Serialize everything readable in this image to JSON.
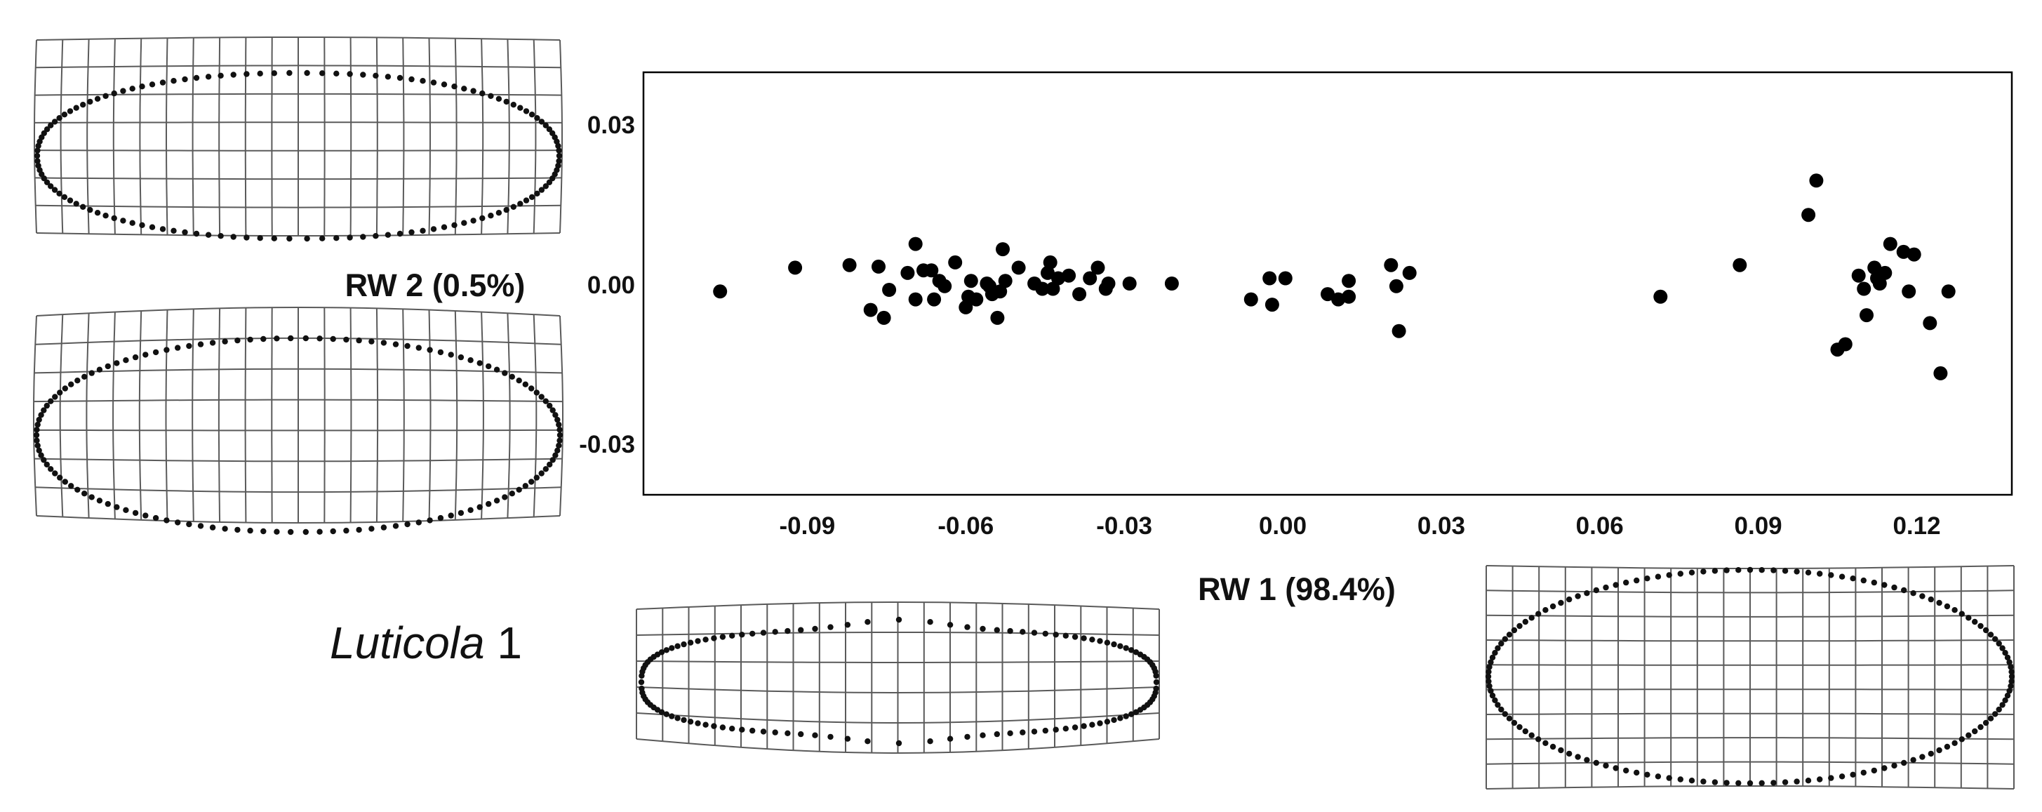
{
  "chart_data": {
    "type": "scatter",
    "taxon_label": {
      "italic": "Luticola",
      "suffix": " 1"
    },
    "xlabel": "RW 1 (98.4%)",
    "ylabel": "RW 2 (0.5%)",
    "xlim": [
      -0.121,
      0.138
    ],
    "ylim": [
      -0.04,
      0.04
    ],
    "xticks": [
      -0.09,
      -0.06,
      -0.03,
      0.0,
      0.03,
      0.06,
      0.09,
      0.12
    ],
    "xtick_labels": [
      "-0.09",
      "-0.06",
      "-0.03",
      "0.00",
      "0.03",
      "0.06",
      "0.09",
      "0.12"
    ],
    "yticks": [
      0.03,
      0.0,
      -0.03
    ],
    "ytick_labels": [
      "0.03",
      "0.00",
      "-0.03"
    ],
    "grid": false,
    "legend": "none",
    "point_color": "#000000",
    "points": [
      {
        "x": -0.1065,
        "y": -0.0015
      },
      {
        "x": -0.0923,
        "y": 0.003
      },
      {
        "x": -0.082,
        "y": 0.0035
      },
      {
        "x": -0.078,
        "y": -0.005
      },
      {
        "x": -0.0765,
        "y": 0.0032
      },
      {
        "x": -0.0755,
        "y": -0.0065
      },
      {
        "x": -0.0745,
        "y": -0.0012
      },
      {
        "x": -0.071,
        "y": 0.002
      },
      {
        "x": -0.0695,
        "y": 0.0075
      },
      {
        "x": -0.0695,
        "y": -0.003
      },
      {
        "x": -0.068,
        "y": 0.0025
      },
      {
        "x": -0.0665,
        "y": 0.0025
      },
      {
        "x": -0.066,
        "y": -0.003
      },
      {
        "x": -0.065,
        "y": 0.0005
      },
      {
        "x": -0.064,
        "y": -0.0005
      },
      {
        "x": -0.062,
        "y": 0.004
      },
      {
        "x": -0.06,
        "y": -0.0045
      },
      {
        "x": -0.0595,
        "y": -0.0025
      },
      {
        "x": -0.059,
        "y": 0.0005
      },
      {
        "x": -0.058,
        "y": -0.003
      },
      {
        "x": -0.056,
        "y": 0.0
      },
      {
        "x": -0.0555,
        "y": -0.0005
      },
      {
        "x": -0.055,
        "y": -0.002
      },
      {
        "x": -0.054,
        "y": -0.0065
      },
      {
        "x": -0.0535,
        "y": -0.0015
      },
      {
        "x": -0.053,
        "y": 0.0065
      },
      {
        "x": -0.0525,
        "y": 0.0005
      },
      {
        "x": -0.05,
        "y": 0.003
      },
      {
        "x": -0.047,
        "y": 0.0
      },
      {
        "x": -0.0455,
        "y": -0.001
      },
      {
        "x": -0.0445,
        "y": 0.002
      },
      {
        "x": -0.044,
        "y": 0.004
      },
      {
        "x": -0.0435,
        "y": -0.001
      },
      {
        "x": -0.0425,
        "y": 0.001
      },
      {
        "x": -0.0405,
        "y": 0.0015
      },
      {
        "x": -0.0385,
        "y": -0.002
      },
      {
        "x": -0.0365,
        "y": 0.001
      },
      {
        "x": -0.035,
        "y": 0.003
      },
      {
        "x": -0.0335,
        "y": -0.001
      },
      {
        "x": -0.033,
        "y": 0.0
      },
      {
        "x": -0.029,
        "y": 0.0
      },
      {
        "x": -0.021,
        "y": 0.0
      },
      {
        "x": -0.006,
        "y": -0.003
      },
      {
        "x": -0.0025,
        "y": 0.001
      },
      {
        "x": -0.002,
        "y": -0.004
      },
      {
        "x": 0.0005,
        "y": 0.001
      },
      {
        "x": 0.0085,
        "y": -0.002
      },
      {
        "x": 0.0105,
        "y": -0.003
      },
      {
        "x": 0.0125,
        "y": -0.0025
      },
      {
        "x": 0.0125,
        "y": 0.0005
      },
      {
        "x": 0.0205,
        "y": 0.0035
      },
      {
        "x": 0.0215,
        "y": -0.0005
      },
      {
        "x": 0.022,
        "y": -0.009
      },
      {
        "x": 0.024,
        "y": 0.002
      },
      {
        "x": 0.0715,
        "y": -0.0025
      },
      {
        "x": 0.0865,
        "y": 0.0035
      },
      {
        "x": 0.0995,
        "y": 0.013
      },
      {
        "x": 0.101,
        "y": 0.0195
      },
      {
        "x": 0.105,
        "y": -0.0125
      },
      {
        "x": 0.1065,
        "y": -0.0115
      },
      {
        "x": 0.109,
        "y": 0.0015
      },
      {
        "x": 0.11,
        "y": -0.001
      },
      {
        "x": 0.1105,
        "y": -0.006
      },
      {
        "x": 0.112,
        "y": 0.003
      },
      {
        "x": 0.1125,
        "y": 0.001
      },
      {
        "x": 0.113,
        "y": 0.0
      },
      {
        "x": 0.114,
        "y": 0.002
      },
      {
        "x": 0.115,
        "y": 0.0075
      },
      {
        "x": 0.1175,
        "y": 0.006
      },
      {
        "x": 0.1185,
        "y": -0.0015
      },
      {
        "x": 0.1195,
        "y": 0.0055
      },
      {
        "x": 0.1225,
        "y": -0.0075
      },
      {
        "x": 0.1245,
        "y": -0.017
      },
      {
        "x": 0.126,
        "y": -0.0015
      }
    ]
  }
}
